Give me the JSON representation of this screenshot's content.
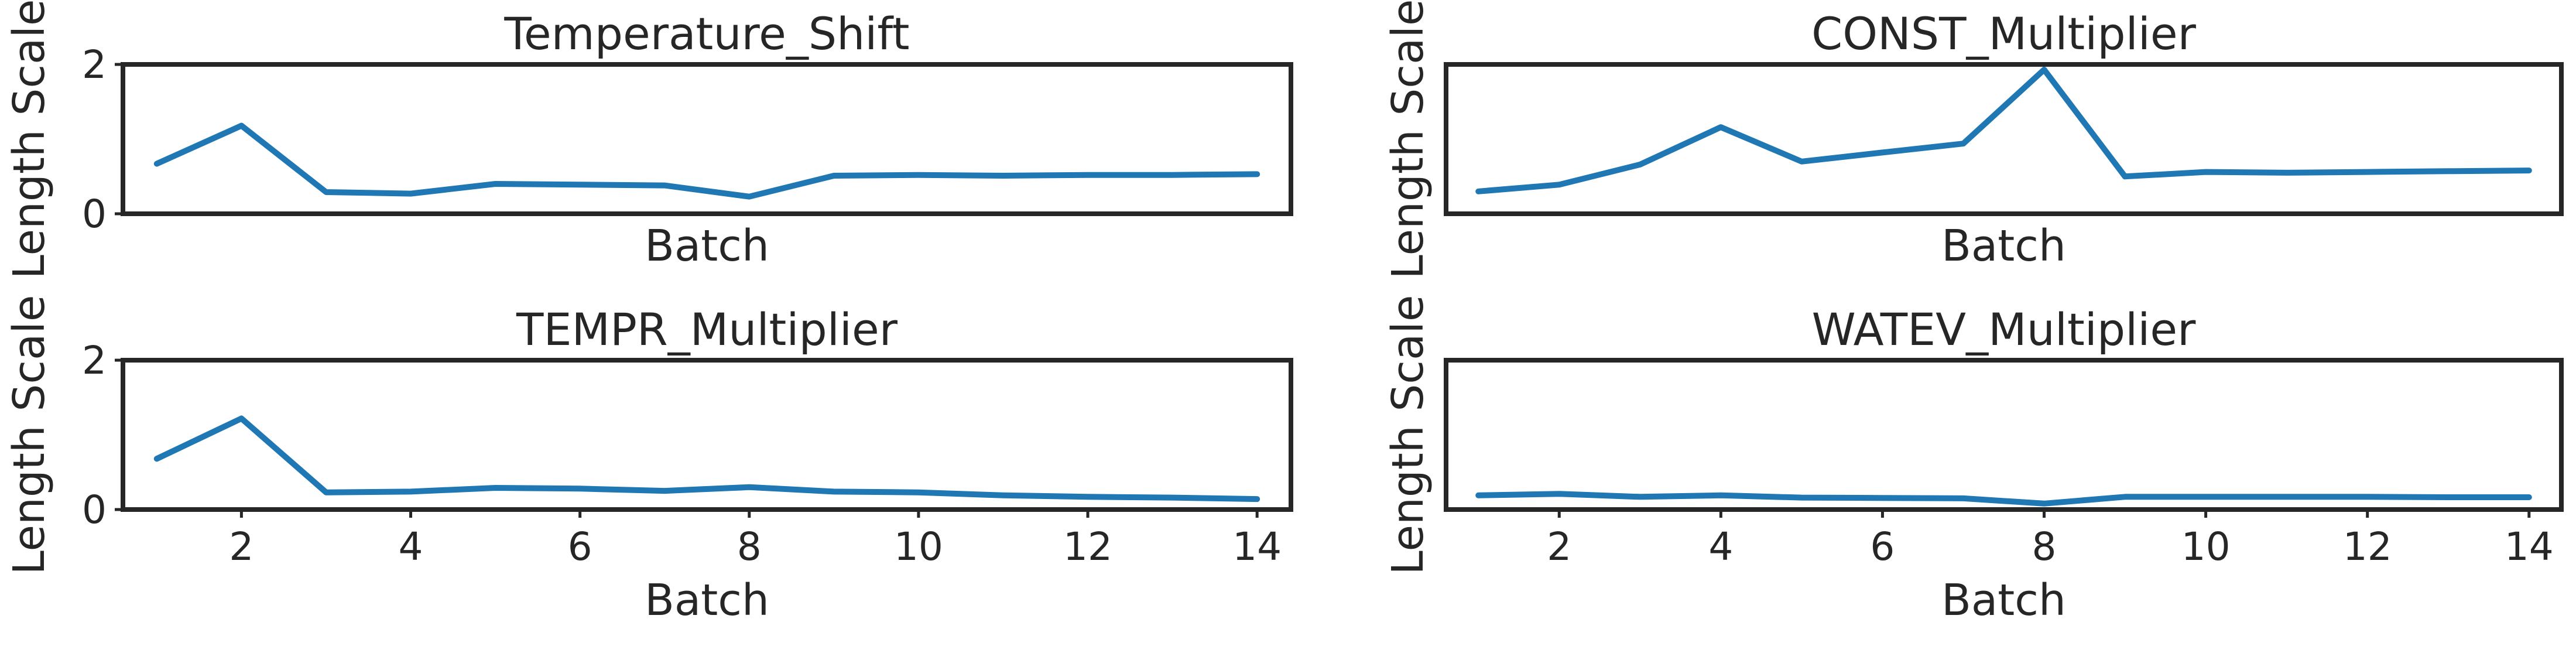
{
  "figure": {
    "accent_color": "#1f77b4",
    "text_color": "#262626"
  },
  "chart_data": [
    {
      "type": "line",
      "title": "Temperature_Shift",
      "xlabel": "Batch",
      "ylabel": "Length Scale",
      "xlim": [
        0.6,
        14.4
      ],
      "ylim": [
        0,
        2
      ],
      "yticks": [
        0,
        2
      ],
      "xticks": [],
      "grid": false,
      "series": [
        {
          "x": [
            1,
            2,
            3,
            4,
            5,
            6,
            7,
            8,
            9,
            10,
            11,
            12,
            13,
            14
          ],
          "values": [
            0.67,
            1.18,
            0.29,
            0.27,
            0.4,
            0.39,
            0.38,
            0.23,
            0.51,
            0.52,
            0.51,
            0.52,
            0.52,
            0.53
          ]
        }
      ]
    },
    {
      "type": "line",
      "title": "CONST_Multiplier",
      "xlabel": "Batch",
      "ylabel": "Length Scale",
      "xlim": [
        0.6,
        14.4
      ],
      "ylim": [
        0,
        2
      ],
      "yticks": [],
      "xticks": [],
      "grid": false,
      "series": [
        {
          "x": [
            1,
            2,
            3,
            4,
            5,
            6,
            7,
            8,
            9,
            10,
            11,
            12,
            13,
            14
          ],
          "values": [
            0.3,
            0.39,
            0.66,
            1.16,
            0.7,
            0.82,
            0.94,
            1.93,
            0.5,
            0.56,
            0.55,
            0.56,
            0.57,
            0.58
          ]
        }
      ]
    },
    {
      "type": "line",
      "title": "TEMPR_Multiplier",
      "xlabel": "Batch",
      "ylabel": "Length Scale",
      "xlim": [
        0.6,
        14.4
      ],
      "ylim": [
        0,
        2
      ],
      "yticks": [
        0,
        2
      ],
      "xticks": [
        2,
        4,
        6,
        8,
        10,
        12,
        14
      ],
      "grid": false,
      "series": [
        {
          "x": [
            1,
            2,
            3,
            4,
            5,
            6,
            7,
            8,
            9,
            10,
            11,
            12,
            13,
            14
          ],
          "values": [
            0.68,
            1.22,
            0.23,
            0.24,
            0.29,
            0.28,
            0.25,
            0.3,
            0.24,
            0.23,
            0.19,
            0.17,
            0.16,
            0.14
          ]
        }
      ]
    },
    {
      "type": "line",
      "title": "WATEV_Multiplier",
      "xlabel": "Batch",
      "ylabel": "Length Scale",
      "xlim": [
        0.6,
        14.4
      ],
      "ylim": [
        0,
        2
      ],
      "yticks": [],
      "xticks": [
        2,
        4,
        6,
        8,
        10,
        12,
        14
      ],
      "grid": false,
      "series": [
        {
          "x": [
            1,
            2,
            3,
            4,
            5,
            6,
            7,
            8,
            9,
            10,
            11,
            12,
            13,
            14
          ],
          "values": [
            0.19,
            0.21,
            0.17,
            0.19,
            0.16,
            0.155,
            0.15,
            0.08,
            0.17,
            0.17,
            0.17,
            0.17,
            0.165,
            0.165
          ]
        }
      ]
    }
  ]
}
